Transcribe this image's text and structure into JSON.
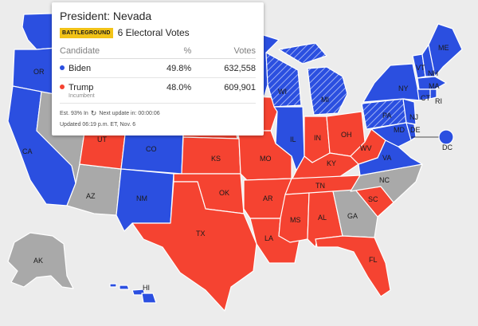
{
  "colors": {
    "dem": "#2b4fe0",
    "rep": "#f54331",
    "undecided": "#a9a9a9",
    "battleground_badge": "#f2c318",
    "background": "#ececec"
  },
  "popup": {
    "title": "President: Nevada",
    "badge": "BATTLEGROUND",
    "electoral_votes": "6 Electoral Votes",
    "headers": {
      "candidate": "Candidate",
      "pct": "%",
      "votes": "Votes"
    },
    "rows": [
      {
        "name": "Biden",
        "tag": "",
        "pct": "49.8%",
        "votes": "632,558",
        "party": "dem"
      },
      {
        "name": "Trump",
        "tag": "Incumbent",
        "pct": "48.0%",
        "votes": "609,901",
        "party": "rep"
      }
    ],
    "est_in": "Est. 93% In",
    "next_update": "Next update in: 00:00:06",
    "updated": "Updated 06:19 p.m. ET, Nov. 6",
    "refresh_icon": "refresh-icon"
  },
  "states": {
    "WA": "dem",
    "OR": "dem",
    "CA": "dem",
    "NV": "undecided",
    "ID": "rep",
    "MT": "rep",
    "WY": "rep",
    "UT": "rep",
    "AZ": "undecided",
    "CO": "dem",
    "NM": "dem",
    "ND": "rep",
    "SD": "rep",
    "NE": "rep",
    "KS": "rep",
    "OK": "rep",
    "TX": "rep",
    "MN": "dem",
    "IA": "rep",
    "MO": "rep",
    "AR": "rep",
    "LA": "rep",
    "WI": "dem-battleground",
    "IL": "dem",
    "MI": "dem-battleground",
    "IN": "rep",
    "OH": "rep",
    "KY": "rep",
    "TN": "rep",
    "MS": "rep",
    "AL": "rep",
    "GA": "undecided",
    "FL": "rep",
    "SC": "rep",
    "NC": "undecided",
    "VA": "dem",
    "WV": "rep",
    "PA": "dem-battleground",
    "NY": "dem",
    "VT": "dem",
    "NH": "dem",
    "ME": "dem",
    "MA": "dem",
    "RI": "dem",
    "CT": "dem",
    "NJ": "dem",
    "DE": "dem",
    "MD": "dem",
    "DC": "dem",
    "AK": "undecided",
    "HI": "dem"
  }
}
